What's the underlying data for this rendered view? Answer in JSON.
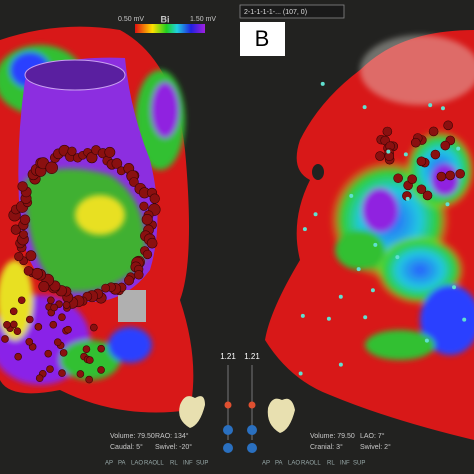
{
  "colorbar": {
    "min_label": "0.50 mV",
    "mode": "Bi",
    "max_label": "1.50 mV"
  },
  "map_selector": "2-1-1-1-1-... (107, 0)",
  "panel_label": "B",
  "sliders": [
    "1.21",
    "1.21"
  ],
  "left_view": {
    "volume": "Volume: 79.50",
    "angle": "RAO: 134°",
    "tilt": "Caudal: 5°",
    "swivel": "Swivel: -20°"
  },
  "right_view": {
    "volume": "Volume: 79.50",
    "angle": "LAO: 7°",
    "tilt": "Cranial: 3°",
    "swivel": "Swivel: 2°"
  },
  "view_buttons": [
    "AP",
    "PA",
    "LAO",
    "RAO",
    "LL",
    "RL",
    "INF",
    "SUP"
  ]
}
